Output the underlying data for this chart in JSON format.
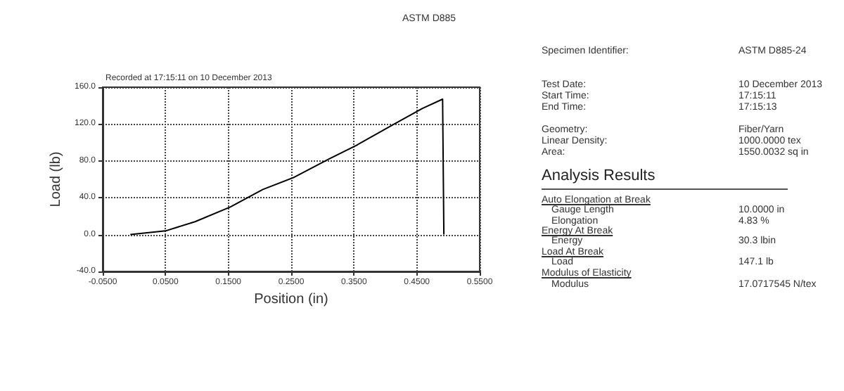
{
  "chart_data": [
    {
      "type": "line",
      "title": "ASTM D885",
      "xlabel": "Position (in)",
      "ylabel": "Load (lb)",
      "annotations": [
        "Recorded at 17:15:11 on 10 December 2013"
      ],
      "series": [
        {
          "color": "#000000",
          "x": [
            -0.006,
            0.05,
            0.097,
            0.153,
            0.205,
            0.254,
            0.31,
            0.354,
            0.414,
            0.459,
            0.491,
            0.493
          ],
          "values": [
            0,
            4,
            14,
            30,
            49,
            62,
            82,
            97,
            120,
            137,
            147,
            0
          ]
        }
      ],
      "xlim": [
        -0.05,
        0.55
      ],
      "xticks": [
        {
          "value": -0.05,
          "label": "-0.0500"
        },
        {
          "value": 0.05,
          "label": "0.0500"
        },
        {
          "value": 0.15,
          "label": "0.1500"
        },
        {
          "value": 0.25,
          "label": "0.2500"
        },
        {
          "value": 0.35,
          "label": "0.3500"
        },
        {
          "value": 0.45,
          "label": "0.4500"
        },
        {
          "value": 0.55,
          "label": "0.5500"
        }
      ],
      "ylim": [
        -40,
        160
      ],
      "yticks": [
        {
          "value": -40,
          "label": "-40.0"
        },
        {
          "value": 0,
          "label": "0.0"
        },
        {
          "value": 40,
          "label": "40.0"
        },
        {
          "value": 80,
          "label": "80.0"
        },
        {
          "value": 120,
          "label": "120.0"
        },
        {
          "value": 160,
          "label": "160.0"
        }
      ],
      "grid": true,
      "marker": "none",
      "line_style": "solid"
    },
    {
      "type": "other",
      "title": "Analysis Results",
      "annotations": [
        "Specimen Identifier:",
        "ASTM D885-24",
        "Test Date:",
        "10 December 2013",
        "Start Time:",
        "17:15:11",
        "End Time:",
        "17:15:13",
        "Geometry:",
        "Fiber/Yarn",
        "Linear Density:",
        "1000.0000 tex",
        "Area:",
        "1550.0032 sq in",
        "Auto Elongation at Break",
        "Gauge Length",
        "10.0000 in",
        "Elongation",
        "4.83 %",
        "Energy At Break",
        "Energy",
        "30.3 lbin",
        "Load At Break",
        "Load",
        "147.1 lb",
        "Modulus of Elasticity",
        "Modulus",
        "17.0717545 N/tex"
      ]
    }
  ]
}
